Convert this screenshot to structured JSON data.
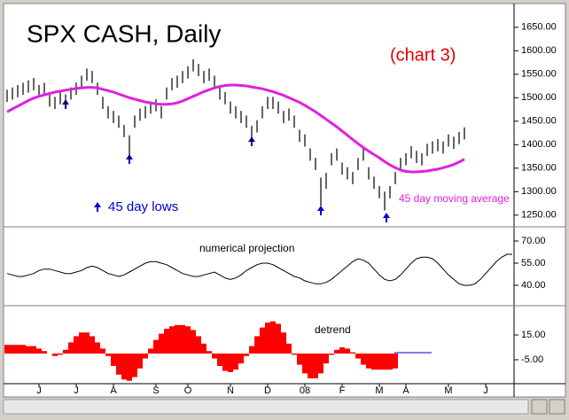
{
  "chart_data": [
    {
      "type": "ohlc",
      "title": "SPX CASH, Daily",
      "subtitle": "(chart 3)",
      "annotation": "45 day lows",
      "color": "#000000",
      "high": [
        1517,
        1522,
        1527,
        1532,
        1537,
        1542,
        1527,
        1532,
        1507,
        1502,
        1512,
        1507,
        1522,
        1532,
        1547,
        1562,
        1557,
        1532,
        1502,
        1482,
        1472,
        1462,
        1442,
        1420,
        1462,
        1477,
        1482,
        1492,
        1497,
        1482,
        1522,
        1542,
        1547,
        1557,
        1567,
        1582,
        1572,
        1557,
        1562,
        1547,
        1522,
        1512,
        1492,
        1482,
        1472,
        1462,
        1440,
        1452,
        1482,
        1502,
        1502,
        1492,
        1472,
        1477,
        1462,
        1432,
        1422,
        1392,
        1372,
        1330,
        1340,
        1382,
        1392,
        1362,
        1352,
        1342,
        1372,
        1392,
        1352,
        1332,
        1312,
        1300,
        1312,
        1342,
        1372,
        1382,
        1397,
        1387,
        1382,
        1402,
        1407,
        1412,
        1407,
        1422,
        1417,
        1427,
        1437,
        null,
        null,
        null,
        null,
        null,
        null,
        null,
        null,
        null
      ],
      "low": [
        1491,
        1496,
        1501,
        1506,
        1511,
        1516,
        1501,
        1506,
        1481,
        1476,
        1486,
        1480,
        1496,
        1506,
        1521,
        1536,
        1531,
        1506,
        1476,
        1456,
        1446,
        1436,
        1416,
        1370,
        1436,
        1451,
        1456,
        1466,
        1471,
        1456,
        1496,
        1516,
        1521,
        1531,
        1541,
        1556,
        1546,
        1531,
        1536,
        1521,
        1496,
        1486,
        1466,
        1456,
        1446,
        1436,
        1405,
        1426,
        1456,
        1476,
        1476,
        1466,
        1446,
        1451,
        1436,
        1406,
        1396,
        1366,
        1346,
        1270,
        1306,
        1356,
        1366,
        1336,
        1326,
        1316,
        1346,
        1366,
        1326,
        1306,
        1286,
        1260,
        1286,
        1316,
        1346,
        1356,
        1371,
        1361,
        1356,
        1376,
        1381,
        1386,
        1381,
        1396,
        1391,
        1401,
        1411,
        null,
        null,
        null,
        null,
        null,
        null,
        null,
        null,
        null
      ],
      "moving_average": {
        "name": "45 day moving average",
        "color": "#e020e0",
        "values": [
          1470,
          1476,
          1482,
          1488,
          1494,
          1499,
          1503,
          1506,
          1509,
          1512,
          1514,
          1516,
          1518,
          1520,
          1521,
          1522,
          1522,
          1521,
          1518,
          1515,
          1512,
          1508,
          1504,
          1500,
          1497,
          1494,
          1491,
          1489,
          1487,
          1486,
          1486,
          1487,
          1489,
          1493,
          1498,
          1503,
          1508,
          1513,
          1517,
          1521,
          1524,
          1526,
          1527,
          1527,
          1526,
          1525,
          1523,
          1521,
          1519,
          1516,
          1513,
          1509,
          1505,
          1500,
          1495,
          1490,
          1484,
          1477,
          1470,
          1462,
          1454,
          1446,
          1438,
          1429,
          1420,
          1411,
          1402,
          1394,
          1386,
          1379,
          1372,
          1364,
          1357,
          1351,
          1346,
          1343,
          1342,
          1342,
          1343,
          1344,
          1346,
          1348,
          1351,
          1354,
          1358,
          1363,
          1369,
          null,
          null,
          null,
          null,
          null,
          null,
          null,
          null,
          null
        ]
      },
      "ylim": [
        1227,
        1693
      ],
      "yticks": [
        {
          "value": 1650,
          "label": "1650.00"
        },
        {
          "value": 1600,
          "label": "1600.00"
        },
        {
          "value": 1550,
          "label": "1550.00"
        },
        {
          "value": 1500,
          "label": "1500.00"
        },
        {
          "value": 1450,
          "label": "1450.00"
        },
        {
          "value": 1400,
          "label": "1400.00"
        },
        {
          "value": 1350,
          "label": "1350.00"
        },
        {
          "value": 1300,
          "label": "1300.00"
        },
        {
          "value": 1250,
          "label": "1250.00"
        }
      ]
    },
    {
      "type": "line",
      "title": "numerical projection",
      "color": "#000000",
      "values": [
        48,
        47,
        46,
        46,
        47,
        48,
        50,
        51,
        51,
        50,
        49,
        48,
        48,
        49,
        50,
        52,
        53,
        52,
        50,
        48,
        47,
        46,
        47,
        49,
        51,
        53,
        55,
        56,
        56,
        55,
        54,
        52,
        50,
        48,
        47,
        46,
        46,
        47,
        48,
        49,
        47,
        45,
        44,
        45,
        47,
        50,
        52,
        54,
        55,
        55,
        54,
        52,
        50,
        48,
        46,
        45,
        43,
        42,
        41,
        41,
        42,
        44,
        47,
        50,
        53,
        56,
        58,
        57,
        55,
        51,
        47,
        44,
        43,
        44,
        47,
        51,
        55,
        58,
        59,
        59,
        58,
        55,
        51,
        47,
        44,
        41,
        40,
        40,
        41,
        44,
        48,
        52,
        56,
        59,
        61,
        61
      ],
      "ylim": [
        27.4,
        78.4
      ],
      "yticks": [
        {
          "value": 70,
          "label": "70.00"
        },
        {
          "value": 55,
          "label": "55.00"
        },
        {
          "value": 40,
          "label": "40.00"
        }
      ]
    },
    {
      "type": "bar",
      "title": "detrend",
      "color": "#ff0000",
      "categories": [
        null,
        null,
        null,
        null,
        null,
        null,
        "J",
        null,
        null,
        null,
        null,
        null,
        null,
        "J",
        null,
        null,
        null,
        null,
        null,
        null,
        "A",
        null,
        null,
        null,
        null,
        null,
        null,
        null,
        "S",
        null,
        null,
        null,
        null,
        null,
        "O",
        null,
        null,
        null,
        null,
        null,
        null,
        null,
        "N",
        null,
        null,
        null,
        null,
        null,
        null,
        "D",
        null,
        null,
        null,
        null,
        null,
        null,
        "08",
        null,
        null,
        null,
        null,
        null,
        null,
        "F",
        null,
        null,
        null,
        null,
        null,
        null,
        "M",
        null,
        null,
        null,
        null,
        "A",
        null,
        null,
        null,
        null,
        null,
        null,
        null,
        "M",
        null,
        null,
        null,
        null,
        null,
        null,
        "J",
        null,
        null,
        null,
        null,
        null
      ],
      "values": [
        7,
        7,
        7,
        7,
        6,
        6,
        4,
        2,
        0,
        -2,
        -1,
        3,
        9,
        14,
        17,
        17,
        14,
        9,
        4,
        -2,
        -10,
        -17,
        -21,
        -22,
        -19,
        -12,
        -4,
        4,
        11,
        16,
        20,
        22,
        23,
        23,
        22,
        19,
        14,
        8,
        2,
        -4,
        -10,
        -14,
        -15,
        -13,
        -8,
        -2,
        6,
        14,
        21,
        25,
        26,
        24,
        17,
        8,
        -1,
        -9,
        -16,
        -20,
        -20,
        -16,
        -8,
        -1,
        3,
        5,
        4,
        1,
        -4,
        -9,
        -12,
        -13,
        -13,
        -13,
        -13,
        -12,
        null,
        null,
        null,
        null,
        null,
        null,
        null,
        null,
        null,
        null,
        null,
        null,
        null,
        null,
        null,
        null,
        null,
        null,
        null,
        null,
        null,
        null
      ],
      "ylim": [
        -23.6,
        37.9
      ],
      "yticks": [
        {
          "value": 15,
          "label": "15.00"
        },
        {
          "value": -5,
          "label": "-5.00"
        }
      ]
    }
  ]
}
